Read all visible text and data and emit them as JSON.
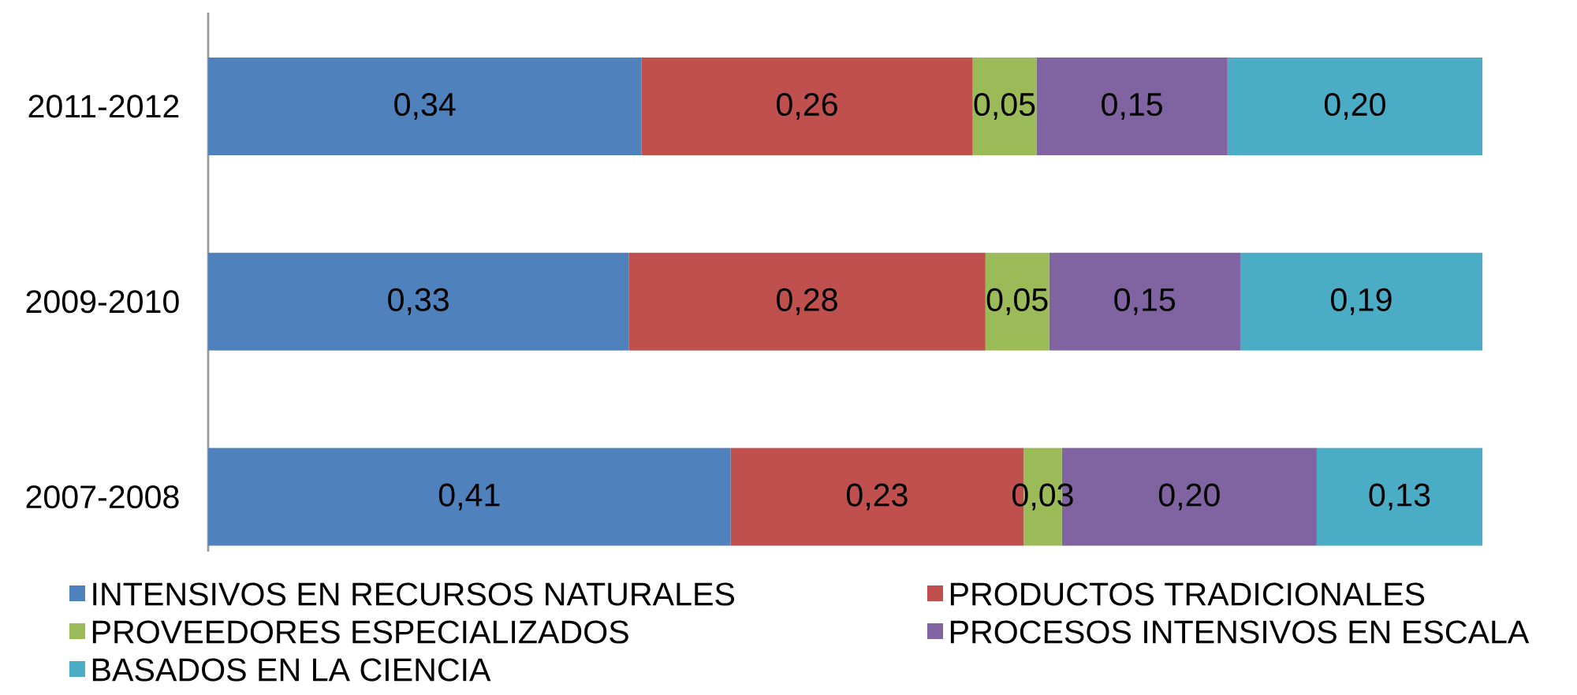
{
  "chart_data": {
    "type": "bar",
    "orientation": "horizontal",
    "stacked": true,
    "legend": "bottom",
    "categories": [
      "2011-2012",
      "2009-2010",
      "2007-2008"
    ],
    "series": [
      {
        "name": "INTENSIVOS EN RECURSOS NATURALES",
        "color": "#4f81bd",
        "values": [
          0.34,
          0.33,
          0.41
        ],
        "value_labels": [
          "0,34",
          "0,33",
          "0,41"
        ]
      },
      {
        "name": "PRODUCTOS TRADICIONALES",
        "color": "#c0504d",
        "values": [
          0.26,
          0.28,
          0.23
        ],
        "value_labels": [
          "0,26",
          "0,28",
          "0,23"
        ]
      },
      {
        "name": "PROVEEDORES ESPECIALIZADOS",
        "color": "#9bbb59",
        "values": [
          0.05,
          0.05,
          0.03
        ],
        "value_labels": [
          "0,05",
          "0,05",
          "0,03"
        ]
      },
      {
        "name": "PROCESOS INTENSIVOS EN ESCALA",
        "color": "#8064a2",
        "values": [
          0.15,
          0.15,
          0.2
        ],
        "value_labels": [
          "0,15",
          "0,15",
          "0,20"
        ]
      },
      {
        "name": "BASADOS EN LA CIENCIA",
        "color": "#4bacc6",
        "values": [
          0.2,
          0.19,
          0.13
        ],
        "value_labels": [
          "0,20",
          "0,19",
          "0,13"
        ]
      }
    ]
  }
}
